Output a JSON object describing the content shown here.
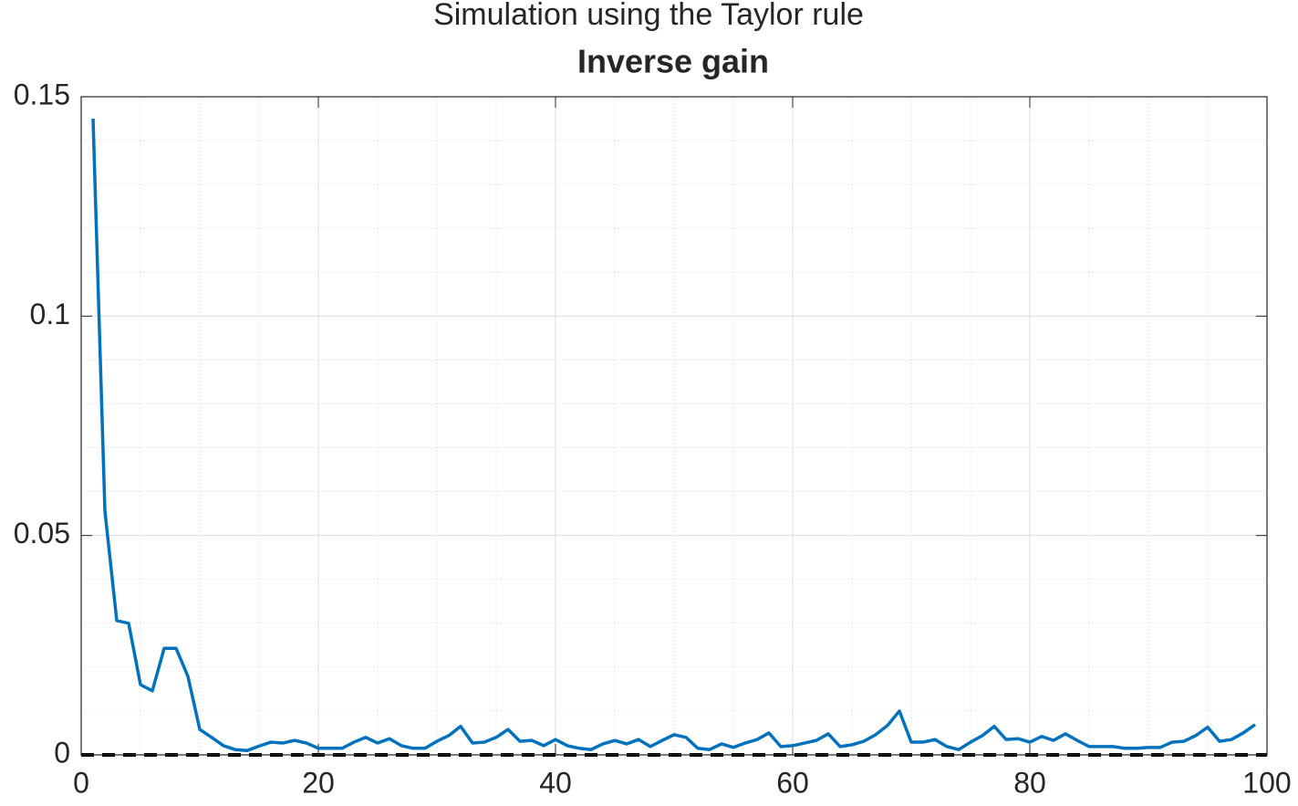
{
  "chart_data": {
    "type": "line",
    "suptitle": "Simulation using the Taylor rule",
    "title": "Inverse gain",
    "x": [
      1,
      2,
      3,
      4,
      5,
      6,
      7,
      8,
      9,
      10,
      11,
      12,
      13,
      14,
      15,
      16,
      17,
      18,
      19,
      20,
      21,
      22,
      23,
      24,
      25,
      26,
      27,
      28,
      29,
      30,
      31,
      32,
      33,
      34,
      35,
      36,
      37,
      38,
      39,
      40,
      41,
      42,
      43,
      44,
      45,
      46,
      47,
      48,
      49,
      50,
      51,
      52,
      53,
      54,
      55,
      56,
      57,
      58,
      59,
      60,
      61,
      62,
      63,
      64,
      65,
      66,
      67,
      68,
      69,
      70,
      71,
      72,
      73,
      74,
      75,
      76,
      77,
      78,
      79,
      80,
      81,
      82,
      83,
      84,
      85,
      86,
      87,
      88,
      89,
      90,
      91,
      92,
      93,
      94,
      95,
      96,
      97,
      98,
      99
    ],
    "series": [
      {
        "color": "#0072bd",
        "values": [
          0.145,
          0.0556,
          0.0306,
          0.03,
          0.016,
          0.0146,
          0.0243,
          0.0243,
          0.0179,
          0.0058,
          0.004,
          0.0021,
          0.0012,
          0.001,
          0.002,
          0.0029,
          0.0027,
          0.0033,
          0.0027,
          0.0015,
          0.0015,
          0.0015,
          0.0029,
          0.004,
          0.0027,
          0.0037,
          0.0021,
          0.0015,
          0.0015,
          0.0031,
          0.0044,
          0.0065,
          0.0027,
          0.0029,
          0.004,
          0.0058,
          0.0031,
          0.0033,
          0.0021,
          0.0035,
          0.0021,
          0.0015,
          0.0012,
          0.0025,
          0.0033,
          0.0025,
          0.0035,
          0.0019,
          0.0033,
          0.0046,
          0.004,
          0.0015,
          0.0012,
          0.0025,
          0.0017,
          0.0027,
          0.0035,
          0.005,
          0.0019,
          0.0021,
          0.0027,
          0.0033,
          0.0048,
          0.0019,
          0.0023,
          0.0031,
          0.0046,
          0.0067,
          0.01,
          0.0029,
          0.0029,
          0.0035,
          0.0019,
          0.0012,
          0.0029,
          0.0044,
          0.0065,
          0.0035,
          0.0037,
          0.0029,
          0.0042,
          0.0033,
          0.0048,
          0.0033,
          0.0019,
          0.0019,
          0.0019,
          0.0015,
          0.0015,
          0.0017,
          0.0017,
          0.0029,
          0.0031,
          0.0044,
          0.0063,
          0.0031,
          0.0035,
          0.005,
          0.0069
        ]
      }
    ],
    "hline": {
      "value": 0,
      "color": "#000000"
    },
    "xlim": [
      0,
      100
    ],
    "xticks": [
      0,
      20,
      40,
      60,
      80,
      100
    ],
    "ylim": [
      0,
      0.15
    ],
    "yticks": [
      0,
      0.05,
      0.1,
      0.15
    ],
    "grid": true,
    "minor_grid": true
  }
}
